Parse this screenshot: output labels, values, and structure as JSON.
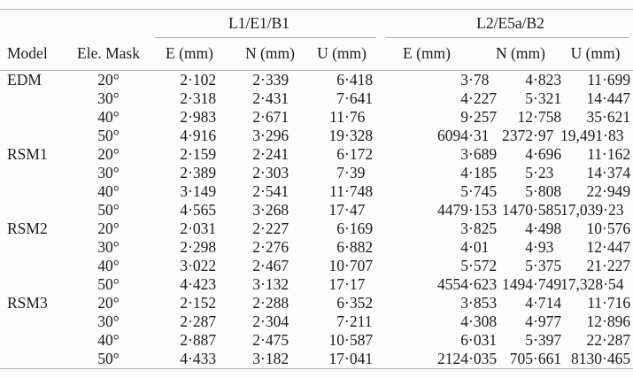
{
  "colors": {
    "background": "#fdfdfd",
    "text": "#1b1b1b",
    "rule": "#b0b0b0"
  },
  "table": {
    "header": {
      "model": "Model",
      "ele_mask": "Ele. Mask",
      "groups": [
        {
          "label": "L1/E1/B1",
          "columns": [
            "E (mm)",
            "N (mm)",
            "U (mm)"
          ]
        },
        {
          "label": "L2/E5a/B2",
          "columns": [
            "E (mm)",
            "N (mm)",
            "U (mm)"
          ]
        }
      ]
    },
    "body": [
      {
        "model": "EDM",
        "rows": [
          {
            "mask": "20°",
            "values": [
              "2·102",
              "2·339",
              "6·418",
              "3·78",
              "4·823",
              "11·699"
            ]
          },
          {
            "mask": "30°",
            "values": [
              "2·318",
              "2·431",
              "7·641",
              "4·227",
              "5·321",
              "14·447"
            ]
          },
          {
            "mask": "40°",
            "values": [
              "2·983",
              "2·671",
              "11·76",
              "9·257",
              "12·758",
              "35·621"
            ]
          },
          {
            "mask": "50°",
            "values": [
              "4·916",
              "3·296",
              "19·328",
              "6094·31",
              "2372·97",
              "19,491·83"
            ]
          }
        ]
      },
      {
        "model": "RSM1",
        "rows": [
          {
            "mask": "20°",
            "values": [
              "2·159",
              "2·241",
              "6·172",
              "3·689",
              "4·696",
              "11·162"
            ]
          },
          {
            "mask": "30°",
            "values": [
              "2·389",
              "2·303",
              "7·39",
              "4·185",
              "5·23",
              "14·374"
            ]
          },
          {
            "mask": "40°",
            "values": [
              "3·149",
              "2·541",
              "11·748",
              "5·745",
              "5·808",
              "22·949"
            ]
          },
          {
            "mask": "50°",
            "values": [
              "4·565",
              "3·268",
              "17·47",
              "4479·153",
              "1470·585",
              "17,039·23"
            ]
          }
        ]
      },
      {
        "model": "RSM2",
        "rows": [
          {
            "mask": "20°",
            "values": [
              "2·031",
              "2·227",
              "6·169",
              "3·825",
              "4·498",
              "10·576"
            ]
          },
          {
            "mask": "30°",
            "values": [
              "2·298",
              "2·276",
              "6·882",
              "4·01",
              "4·93",
              "12·447"
            ]
          },
          {
            "mask": "40°",
            "values": [
              "3·022",
              "2·467",
              "10·707",
              "5·572",
              "5·375",
              "21·227"
            ]
          },
          {
            "mask": "50°",
            "values": [
              "4·423",
              "3·132",
              "17·17",
              "4554·623",
              "1494·749",
              "17,328·54"
            ]
          }
        ]
      },
      {
        "model": "RSM3",
        "rows": [
          {
            "mask": "20°",
            "values": [
              "2·152",
              "2·288",
              "6·352",
              "3·853",
              "4·714",
              "11·716"
            ]
          },
          {
            "mask": "30°",
            "values": [
              "2·287",
              "2·304",
              "7·211",
              "4·308",
              "4·977",
              "12·896"
            ]
          },
          {
            "mask": "40°",
            "values": [
              "2·887",
              "2·475",
              "10·587",
              "6·031",
              "5·397",
              "22·287"
            ]
          },
          {
            "mask": "50°",
            "values": [
              "4·433",
              "3·182",
              "17·041",
              "2124·035",
              "705·661",
              "8130·465"
            ]
          }
        ]
      }
    ]
  }
}
